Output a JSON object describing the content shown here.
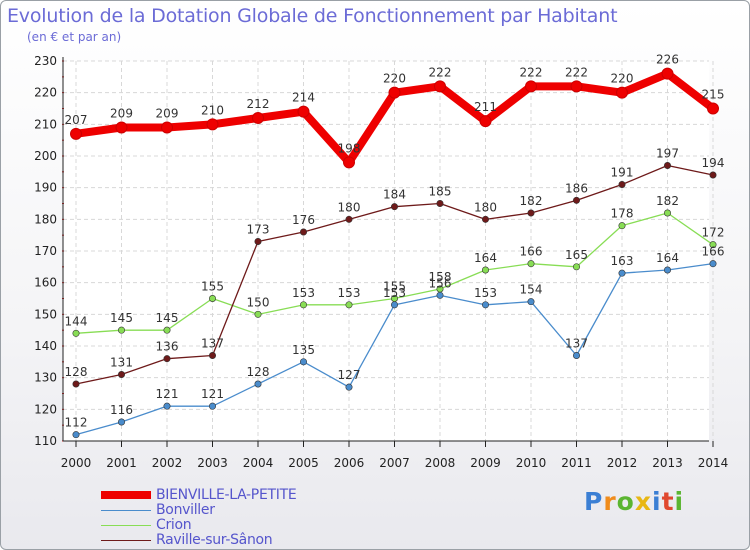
{
  "header": {
    "title": "Evolution de la Dotation Globale de Fonctionnement par Habitant",
    "subtitle": "(en € et par an)"
  },
  "logo": {
    "letters": [
      "P",
      "r",
      "o",
      "x",
      "i",
      "t",
      "i"
    ]
  },
  "chart_data": {
    "type": "line",
    "title": "Evolution de la Dotation Globale de Fonctionnement par Habitant",
    "subtitle": "(en € et par an)",
    "xlabel": "",
    "ylabel": "",
    "ylim": [
      110,
      230
    ],
    "yticks": [
      110,
      120,
      130,
      140,
      150,
      160,
      170,
      180,
      190,
      200,
      210,
      220,
      230
    ],
    "x": [
      2000,
      2001,
      2002,
      2003,
      2004,
      2005,
      2006,
      2007,
      2008,
      2009,
      2010,
      2011,
      2012,
      2013,
      2014
    ],
    "grid": true,
    "legend_position": "bottom-left",
    "series": [
      {
        "name": "BIENVILLE-LA-PETITE",
        "color": "#ee0000",
        "emphasis": true,
        "values": [
          207,
          209,
          209,
          210,
          212,
          214,
          198,
          220,
          222,
          211,
          222,
          222,
          220,
          226,
          215
        ]
      },
      {
        "name": "Bonviller",
        "color": "#4a8ccc",
        "emphasis": false,
        "values": [
          112,
          116,
          121,
          121,
          128,
          135,
          127,
          153,
          156,
          153,
          154,
          137,
          163,
          164,
          166
        ]
      },
      {
        "name": "Crion",
        "color": "#88dd55",
        "emphasis": false,
        "values": [
          144,
          145,
          145,
          155,
          150,
          153,
          153,
          155,
          158,
          164,
          166,
          165,
          178,
          182,
          172
        ]
      },
      {
        "name": "Raville-sur-Sânon",
        "color": "#6e1a1a",
        "emphasis": false,
        "values": [
          128,
          131,
          136,
          137,
          173,
          176,
          180,
          184,
          185,
          180,
          182,
          186,
          191,
          197,
          194
        ]
      }
    ]
  }
}
